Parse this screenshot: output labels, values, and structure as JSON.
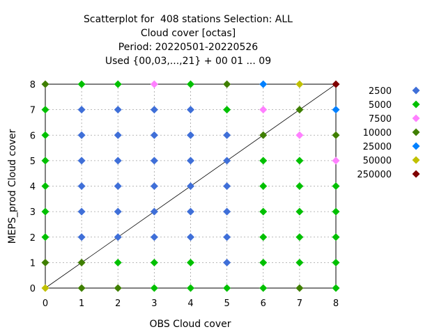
{
  "chart_data": {
    "type": "scatter",
    "title_lines": [
      "Scatterplot for  408 stations Selection: ALL",
      "Cloud cover [octas]",
      "Period: 20220501-20220526",
      "Used {00,03,...,21} + 00 01 ... 09"
    ],
    "xlabel": "OBS Cloud cover",
    "ylabel": "MEPS_prod Cloud cover",
    "xlim": [
      0,
      8
    ],
    "ylim": [
      0,
      8
    ],
    "xticks": [
      "0",
      "1",
      "2",
      "3",
      "4",
      "5",
      "6",
      "7",
      "8"
    ],
    "yticks": [
      "0",
      "1",
      "2",
      "3",
      "4",
      "5",
      "6",
      "7",
      "8"
    ],
    "grid": true,
    "diagonal_line": true,
    "legend_position": "right",
    "categories": [
      {
        "label": "2500",
        "color": "#3f6fd8"
      },
      {
        "label": "5000",
        "color": "#00c000"
      },
      {
        "label": "7500",
        "color": "#ff80ff"
      },
      {
        "label": "10000",
        "color": "#3f7f00"
      },
      {
        "label": "25000",
        "color": "#0080ff"
      },
      {
        "label": "50000",
        "color": "#c0c000"
      },
      {
        "label": "250000",
        "color": "#7f0000"
      }
    ],
    "points": [
      [
        0,
        0,
        "50000"
      ],
      [
        0,
        1,
        "10000"
      ],
      [
        0,
        2,
        "5000"
      ],
      [
        0,
        3,
        "5000"
      ],
      [
        0,
        4,
        "5000"
      ],
      [
        0,
        5,
        "5000"
      ],
      [
        0,
        6,
        "5000"
      ],
      [
        0,
        7,
        "5000"
      ],
      [
        0,
        8,
        "10000"
      ],
      [
        1,
        0,
        "10000"
      ],
      [
        1,
        1,
        "10000"
      ],
      [
        1,
        2,
        "2500"
      ],
      [
        1,
        3,
        "2500"
      ],
      [
        1,
        4,
        "2500"
      ],
      [
        1,
        5,
        "2500"
      ],
      [
        1,
        6,
        "2500"
      ],
      [
        1,
        7,
        "2500"
      ],
      [
        1,
        8,
        "5000"
      ],
      [
        2,
        0,
        "10000"
      ],
      [
        2,
        1,
        "5000"
      ],
      [
        2,
        2,
        "2500"
      ],
      [
        2,
        3,
        "2500"
      ],
      [
        2,
        4,
        "2500"
      ],
      [
        2,
        5,
        "2500"
      ],
      [
        2,
        6,
        "2500"
      ],
      [
        2,
        7,
        "2500"
      ],
      [
        2,
        8,
        "5000"
      ],
      [
        3,
        0,
        "5000"
      ],
      [
        3,
        1,
        "5000"
      ],
      [
        3,
        2,
        "2500"
      ],
      [
        3,
        3,
        "2500"
      ],
      [
        3,
        4,
        "2500"
      ],
      [
        3,
        5,
        "2500"
      ],
      [
        3,
        6,
        "2500"
      ],
      [
        3,
        7,
        "2500"
      ],
      [
        3,
        8,
        "7500"
      ],
      [
        4,
        0,
        "5000"
      ],
      [
        4,
        1,
        "5000"
      ],
      [
        4,
        2,
        "2500"
      ],
      [
        4,
        3,
        "2500"
      ],
      [
        4,
        4,
        "2500"
      ],
      [
        4,
        5,
        "2500"
      ],
      [
        4,
        6,
        "2500"
      ],
      [
        4,
        7,
        "2500"
      ],
      [
        4,
        8,
        "5000"
      ],
      [
        5,
        0,
        "5000"
      ],
      [
        5,
        1,
        "2500"
      ],
      [
        5,
        2,
        "2500"
      ],
      [
        5,
        3,
        "2500"
      ],
      [
        5,
        4,
        "2500"
      ],
      [
        5,
        5,
        "2500"
      ],
      [
        5,
        6,
        "2500"
      ],
      [
        5,
        7,
        "5000"
      ],
      [
        5,
        8,
        "10000"
      ],
      [
        6,
        0,
        "5000"
      ],
      [
        6,
        1,
        "5000"
      ],
      [
        6,
        2,
        "5000"
      ],
      [
        6,
        3,
        "5000"
      ],
      [
        6,
        4,
        "5000"
      ],
      [
        6,
        5,
        "5000"
      ],
      [
        6,
        6,
        "10000"
      ],
      [
        6,
        7,
        "7500"
      ],
      [
        6,
        8,
        "25000"
      ],
      [
        7,
        0,
        "10000"
      ],
      [
        7,
        1,
        "5000"
      ],
      [
        7,
        2,
        "5000"
      ],
      [
        7,
        3,
        "5000"
      ],
      [
        7,
        4,
        "5000"
      ],
      [
        7,
        5,
        "5000"
      ],
      [
        7,
        6,
        "7500"
      ],
      [
        7,
        7,
        "10000"
      ],
      [
        7,
        8,
        "50000"
      ],
      [
        8,
        0,
        "5000"
      ],
      [
        8,
        1,
        "5000"
      ],
      [
        8,
        2,
        "5000"
      ],
      [
        8,
        3,
        "5000"
      ],
      [
        8,
        4,
        "5000"
      ],
      [
        8,
        5,
        "7500"
      ],
      [
        8,
        6,
        "10000"
      ],
      [
        8,
        7,
        "25000"
      ],
      [
        8,
        8,
        "250000"
      ]
    ]
  }
}
